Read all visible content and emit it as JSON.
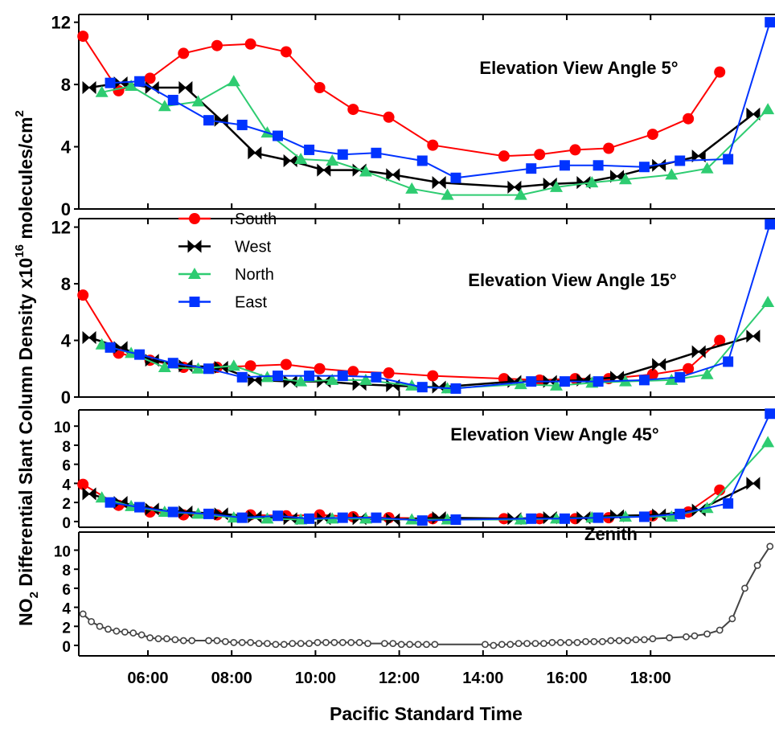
{
  "chart_data": [
    {
      "type": "line",
      "title": "Elevation View Angle 5°",
      "xlim": [
        4.35,
        20.97
      ],
      "ylim": [
        0,
        12.5
      ],
      "yticks": [
        0,
        4,
        8,
        12
      ],
      "series": [
        {
          "color": "#ff0000",
          "marker": "circle",
          "x": [
            4.45,
            5.3,
            6.05,
            6.85,
            7.65,
            8.45,
            9.3,
            10.1,
            10.9,
            11.75,
            12.8,
            14.5,
            15.35,
            16.2,
            17.0,
            18.05,
            18.9,
            19.65
          ],
          "values": [
            11.1,
            7.6,
            8.4,
            10.0,
            10.5,
            10.6,
            10.1,
            7.8,
            6.4,
            5.9,
            4.1,
            3.4,
            3.5,
            3.8,
            3.9,
            4.8,
            5.8,
            8.8
          ]
        },
        {
          "color": "#000000",
          "marker": "bowtie",
          "x": [
            4.6,
            5.35,
            6.1,
            6.9,
            7.75,
            8.55,
            9.4,
            10.2,
            11.05,
            11.85,
            12.95,
            14.75,
            15.6,
            16.4,
            17.2,
            18.2,
            19.15,
            20.45
          ],
          "values": [
            7.8,
            8.1,
            7.8,
            7.8,
            5.7,
            3.6,
            3.1,
            2.5,
            2.5,
            2.2,
            1.7,
            1.4,
            1.6,
            1.7,
            2.1,
            2.8,
            3.4,
            6.1
          ]
        },
        {
          "color": "#2ecc71",
          "marker": "triangle",
          "x": [
            4.9,
            5.6,
            6.4,
            7.2,
            8.05,
            8.85,
            9.65,
            10.4,
            11.2,
            12.3,
            13.15,
            14.9,
            15.75,
            16.6,
            17.4,
            18.5,
            19.35,
            20.8
          ],
          "values": [
            7.5,
            7.9,
            6.6,
            6.9,
            8.2,
            4.9,
            3.2,
            3.1,
            2.4,
            1.3,
            0.9,
            0.9,
            1.4,
            1.7,
            1.9,
            2.2,
            2.6,
            6.4
          ]
        },
        {
          "color": "#0033ff",
          "marker": "square",
          "x": [
            5.1,
            5.8,
            6.6,
            7.45,
            8.25,
            9.1,
            9.85,
            10.65,
            11.45,
            12.55,
            13.35,
            15.15,
            15.95,
            16.75,
            17.85,
            18.7,
            19.85,
            20.85
          ],
          "values": [
            8.1,
            8.2,
            7.0,
            5.7,
            5.4,
            4.7,
            3.8,
            3.5,
            3.6,
            3.1,
            2.0,
            2.6,
            2.8,
            2.8,
            2.7,
            3.1,
            3.2,
            12.0
          ]
        }
      ]
    },
    {
      "type": "line",
      "title": "Elevation View Angle 15°",
      "xlim": [
        4.35,
        20.97
      ],
      "ylim": [
        0,
        12.6
      ],
      "yticks": [
        0,
        4,
        8,
        12
      ],
      "legend": "upper left",
      "series": [
        {
          "name": "South",
          "color": "#ff0000",
          "marker": "circle",
          "x": [
            4.45,
            5.3,
            6.05,
            6.85,
            7.65,
            8.45,
            9.3,
            10.1,
            10.9,
            11.75,
            12.8,
            14.5,
            15.35,
            16.2,
            17.0,
            18.05,
            18.9,
            19.65
          ],
          "values": [
            7.2,
            3.1,
            2.6,
            2.1,
            2.1,
            2.2,
            2.3,
            2.0,
            1.8,
            1.7,
            1.5,
            1.3,
            1.2,
            1.3,
            1.3,
            1.6,
            2.0,
            4.0
          ]
        },
        {
          "name": "West",
          "color": "#000000",
          "marker": "bowtie",
          "x": [
            4.6,
            5.35,
            6.1,
            6.9,
            7.75,
            8.55,
            9.4,
            10.2,
            11.05,
            11.85,
            12.95,
            14.75,
            15.6,
            16.4,
            17.2,
            18.2,
            19.15,
            20.45
          ],
          "values": [
            4.2,
            3.5,
            2.6,
            2.2,
            2.1,
            1.2,
            1.1,
            1.1,
            0.9,
            0.8,
            0.7,
            1.1,
            1.1,
            1.2,
            1.4,
            2.3,
            3.2,
            4.3
          ]
        },
        {
          "name": "North",
          "color": "#2ecc71",
          "marker": "triangle",
          "x": [
            4.9,
            5.6,
            6.4,
            7.2,
            8.05,
            8.85,
            9.65,
            10.4,
            11.2,
            12.3,
            13.15,
            14.9,
            15.75,
            16.6,
            17.4,
            18.5,
            19.35,
            20.8
          ],
          "values": [
            3.7,
            3.1,
            2.1,
            2.0,
            2.2,
            1.4,
            1.1,
            1.2,
            1.2,
            0.8,
            0.6,
            0.9,
            0.8,
            1.0,
            1.1,
            1.2,
            1.6,
            6.7
          ]
        },
        {
          "name": "East",
          "color": "#0033ff",
          "marker": "square",
          "x": [
            5.1,
            5.8,
            6.6,
            7.45,
            8.25,
            9.1,
            9.85,
            10.65,
            11.45,
            12.55,
            13.35,
            15.15,
            15.95,
            16.75,
            17.85,
            18.7,
            19.85,
            20.85
          ],
          "values": [
            3.5,
            3.0,
            2.4,
            2.0,
            1.4,
            1.5,
            1.5,
            1.5,
            1.4,
            0.7,
            0.6,
            1.1,
            1.1,
            1.1,
            1.2,
            1.4,
            2.5,
            12.2
          ]
        }
      ]
    },
    {
      "type": "line",
      "title": "Elevation View Angle 45°",
      "xlim": [
        4.35,
        20.97
      ],
      "ylim": [
        -0.6,
        11.7
      ],
      "yticks": [
        0,
        2,
        4,
        6,
        8,
        10
      ],
      "series": [
        {
          "color": "#ff0000",
          "marker": "circle",
          "x": [
            4.45,
            5.3,
            6.05,
            6.85,
            7.65,
            8.45,
            9.3,
            10.1,
            10.9,
            11.75,
            12.8,
            14.5,
            15.35,
            16.2,
            17.0,
            18.05,
            18.9,
            19.65
          ],
          "values": [
            3.9,
            1.7,
            1.0,
            0.7,
            0.7,
            0.7,
            0.6,
            0.7,
            0.5,
            0.4,
            0.3,
            0.3,
            0.3,
            0.3,
            0.4,
            0.6,
            1.0,
            3.3
          ]
        },
        {
          "color": "#000000",
          "marker": "bowtie",
          "x": [
            4.6,
            5.35,
            6.1,
            6.9,
            7.75,
            8.55,
            9.4,
            10.2,
            11.05,
            11.85,
            12.95,
            14.75,
            15.6,
            16.4,
            17.2,
            18.2,
            19.15,
            20.45
          ],
          "values": [
            2.9,
            2.0,
            1.3,
            1.0,
            0.8,
            0.5,
            0.3,
            0.3,
            0.3,
            0.2,
            0.4,
            0.3,
            0.4,
            0.4,
            0.6,
            0.7,
            1.2,
            4.0
          ]
        },
        {
          "color": "#2ecc71",
          "marker": "triangle",
          "x": [
            4.9,
            5.6,
            6.4,
            7.2,
            8.05,
            8.85,
            9.65,
            10.4,
            11.2,
            12.3,
            13.15,
            14.9,
            15.75,
            16.6,
            17.4,
            18.5,
            19.35,
            20.8
          ],
          "values": [
            2.5,
            1.6,
            1.0,
            0.8,
            0.4,
            0.3,
            0.2,
            0.3,
            0.3,
            0.2,
            0.2,
            0.2,
            0.3,
            0.4,
            0.5,
            0.5,
            1.4,
            8.3
          ]
        },
        {
          "color": "#0033ff",
          "marker": "square",
          "x": [
            5.1,
            5.8,
            6.6,
            7.45,
            8.25,
            9.1,
            9.85,
            10.65,
            11.45,
            12.55,
            13.35,
            15.15,
            15.95,
            16.75,
            17.85,
            18.7,
            19.85,
            20.85
          ],
          "values": [
            2.0,
            1.5,
            1.0,
            0.8,
            0.4,
            0.6,
            0.3,
            0.4,
            0.4,
            0.1,
            0.2,
            0.3,
            0.3,
            0.4,
            0.5,
            0.8,
            1.9,
            11.3
          ]
        }
      ]
    },
    {
      "type": "line",
      "title": "Zenith",
      "xlim": [
        4.35,
        20.97
      ],
      "ylim": [
        -1.1,
        11.9
      ],
      "yticks": [
        0,
        2,
        4,
        6,
        8,
        10
      ],
      "xticks": [
        {
          "value": 6,
          "label": "06:00"
        },
        {
          "value": 8,
          "label": "08:00"
        },
        {
          "value": 10,
          "label": "10:00"
        },
        {
          "value": 12,
          "label": "12:00"
        },
        {
          "value": 14,
          "label": "14:00"
        },
        {
          "value": 16,
          "label": "16:00"
        },
        {
          "value": 18,
          "label": "18:00"
        }
      ],
      "xlabel": "Pacific Standard Time",
      "ylabel": [
        "NO",
        "2",
        " Differential Slant Column Density x10",
        "16",
        " molecules/cm",
        "2"
      ],
      "series": [
        {
          "color": "#444444",
          "marker": "open-circle",
          "x": [
            4.45,
            4.65,
            4.85,
            5.05,
            5.25,
            5.45,
            5.65,
            5.85,
            6.05,
            6.25,
            6.45,
            6.65,
            6.85,
            7.05,
            7.45,
            7.65,
            7.85,
            8.05,
            8.25,
            8.45,
            8.65,
            8.85,
            9.05,
            9.25,
            9.45,
            9.65,
            9.85,
            10.05,
            10.25,
            10.45,
            10.65,
            10.85,
            11.05,
            11.25,
            11.65,
            11.85,
            12.05,
            12.25,
            12.45,
            12.65,
            12.85,
            14.05,
            14.25,
            14.45,
            14.65,
            14.85,
            15.05,
            15.25,
            15.45,
            15.65,
            15.85,
            16.05,
            16.25,
            16.45,
            16.65,
            16.85,
            17.05,
            17.25,
            17.45,
            17.65,
            17.85,
            18.05,
            18.45,
            18.85,
            19.05,
            19.35,
            19.65,
            19.95,
            20.25,
            20.55,
            20.85
          ],
          "values": [
            3.3,
            2.5,
            2.0,
            1.7,
            1.5,
            1.4,
            1.3,
            1.1,
            0.8,
            0.7,
            0.7,
            0.6,
            0.5,
            0.5,
            0.5,
            0.5,
            0.4,
            0.3,
            0.3,
            0.3,
            0.2,
            0.2,
            0.1,
            0.1,
            0.2,
            0.2,
            0.2,
            0.3,
            0.3,
            0.3,
            0.3,
            0.3,
            0.3,
            0.2,
            0.2,
            0.2,
            0.1,
            0.1,
            0.1,
            0.1,
            0.1,
            0.1,
            0.0,
            0.1,
            0.1,
            0.2,
            0.2,
            0.2,
            0.2,
            0.3,
            0.3,
            0.3,
            0.3,
            0.4,
            0.4,
            0.4,
            0.5,
            0.5,
            0.5,
            0.6,
            0.6,
            0.7,
            0.8,
            0.9,
            1.0,
            1.2,
            1.6,
            2.8,
            6.0,
            8.4,
            10.4
          ]
        }
      ]
    }
  ]
}
